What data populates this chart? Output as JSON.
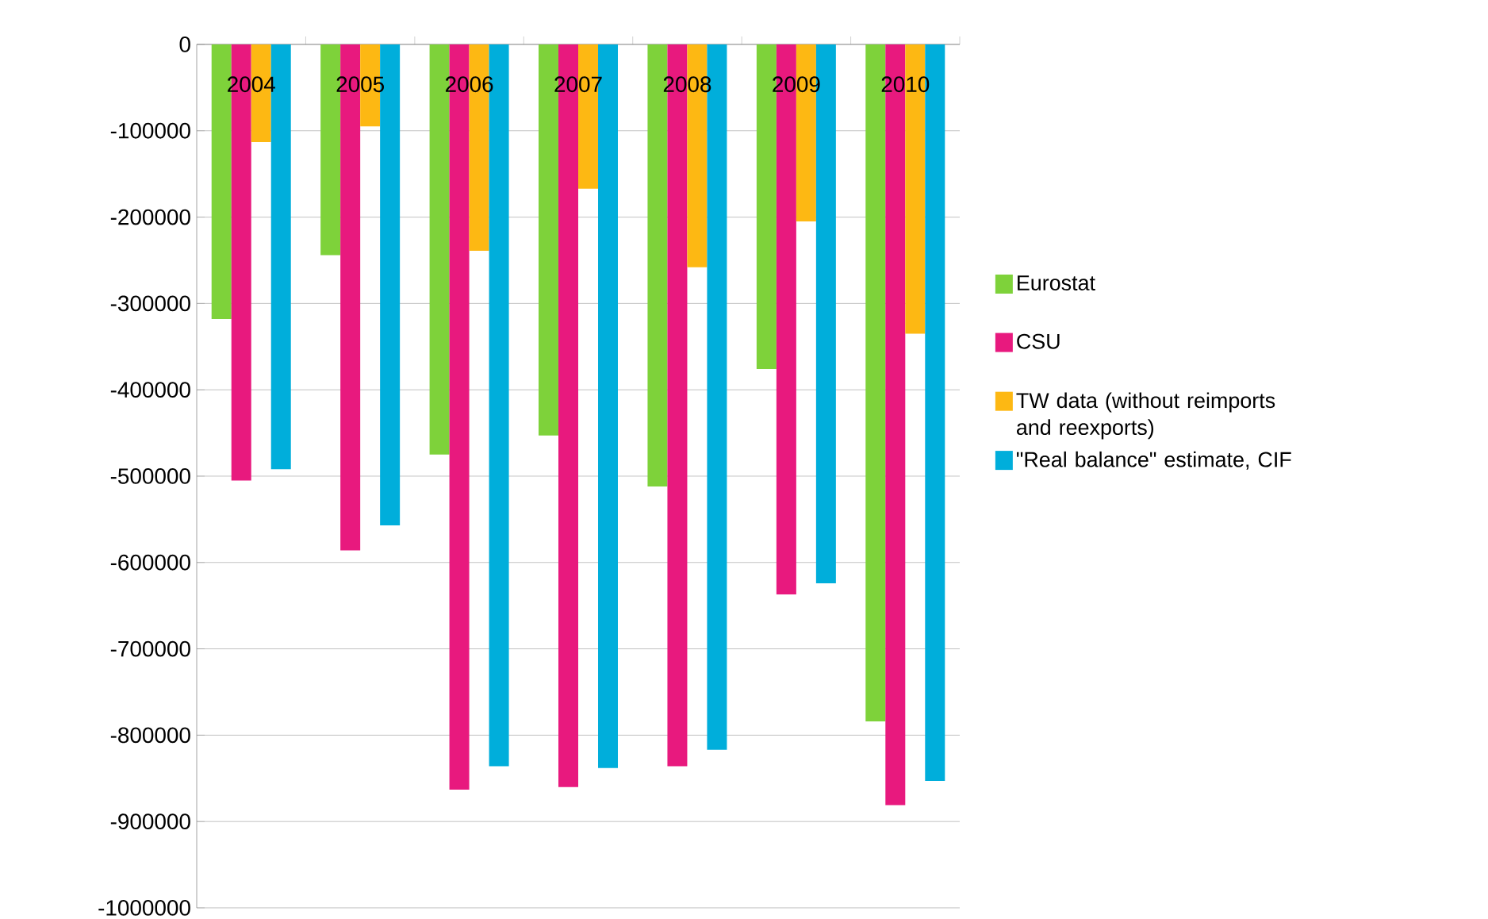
{
  "chart_data": {
    "type": "bar",
    "categories": [
      "2004",
      "2005",
      "2006",
      "2007",
      "2008",
      "2009",
      "2010"
    ],
    "series": [
      {
        "name": "Eurostat",
        "color": "#7ed23a",
        "values": [
          -318000,
          -244000,
          -475000,
          -453000,
          -512000,
          -376000,
          -784000
        ]
      },
      {
        "name": "CSU",
        "color": "#e8197e",
        "values": [
          -505000,
          -586000,
          -863000,
          -860000,
          -836000,
          -637000,
          -881000
        ]
      },
      {
        "name": "TW data (without reimports and reexports)",
        "color": "#fdb813",
        "values": [
          -113000,
          -95000,
          -239000,
          -167000,
          -258000,
          -205000,
          -335000
        ]
      },
      {
        "name": "\"Real balance\" estimate, CIF",
        "color": "#00aedb",
        "values": [
          -492000,
          -557000,
          -836000,
          -838000,
          -817000,
          -624000,
          -853000
        ]
      }
    ],
    "ylim": [
      -1000000,
      0
    ],
    "yticks": [
      0,
      -100000,
      -200000,
      -300000,
      -400000,
      -500000,
      -600000,
      -700000,
      -800000,
      -900000,
      -1000000
    ],
    "grid": "y",
    "legend": "right"
  }
}
